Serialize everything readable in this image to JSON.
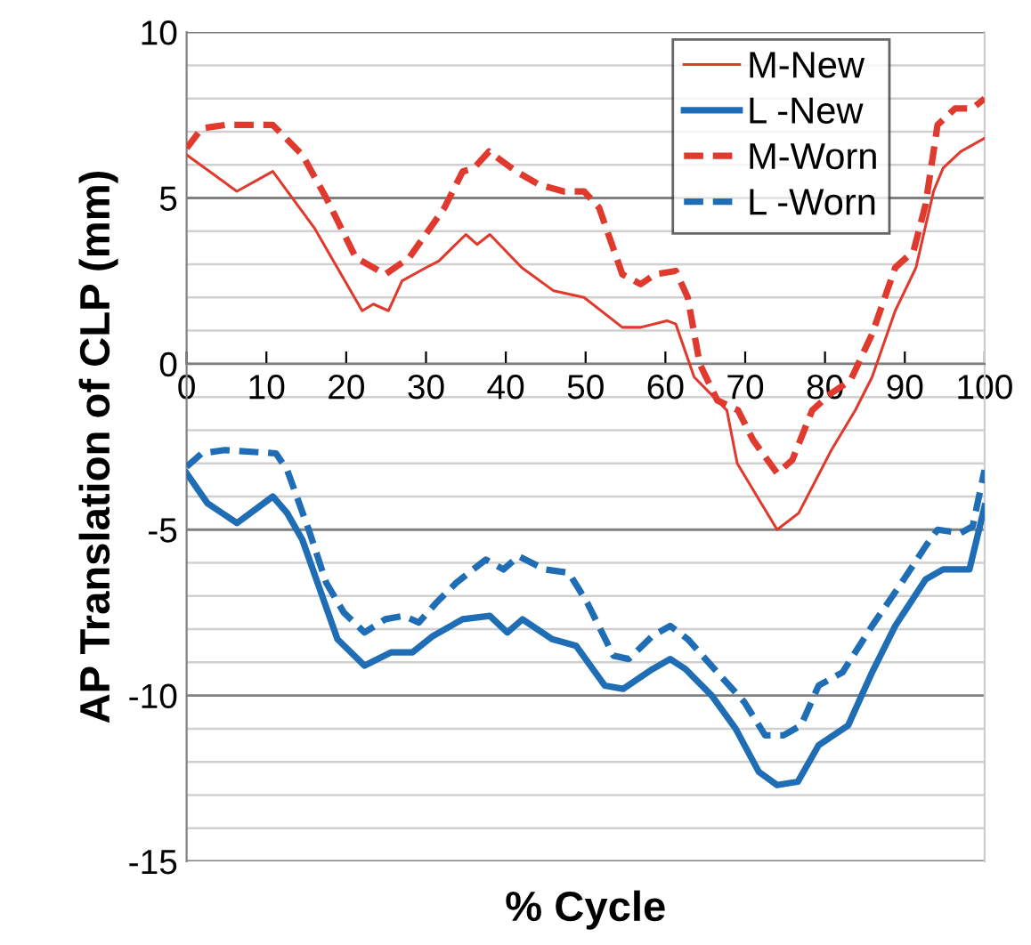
{
  "chart_data": {
    "type": "line",
    "xlabel": "% Cycle",
    "ylabel": "AP Translation of CLP (mm)",
    "xlim": [
      0,
      100
    ],
    "xticks": [
      0,
      10,
      20,
      30,
      40,
      50,
      60,
      70,
      80,
      90,
      100
    ],
    "ylim": [
      -15,
      10
    ],
    "yticks": [
      -15,
      {
        "value": -14,
        "label": null
      },
      {
        "value": -13,
        "label": null
      },
      {
        "value": -12,
        "label": null
      },
      {
        "value": -11,
        "label": null
      },
      -10,
      {
        "value": -9,
        "label": null
      },
      {
        "value": -8,
        "label": null
      },
      {
        "value": -7,
        "label": null
      },
      {
        "value": -6,
        "label": null
      },
      -5,
      {
        "value": -4,
        "label": null
      },
      {
        "value": -3,
        "label": null
      },
      {
        "value": -2,
        "label": null
      },
      {
        "value": -1,
        "label": null
      },
      0,
      {
        "value": 1,
        "label": null
      },
      {
        "value": 2,
        "label": null
      },
      {
        "value": 3,
        "label": null
      },
      {
        "value": 4,
        "label": null
      },
      5,
      {
        "value": 6,
        "label": null
      },
      {
        "value": 7,
        "label": null
      },
      {
        "value": 8,
        "label": null
      },
      {
        "value": 9,
        "label": null
      },
      10
    ],
    "grid": "y",
    "legend": "top right",
    "marker": "none",
    "series": [
      {
        "name": "M-New",
        "color": "#e03a2f",
        "line_style": "solid",
        "x": [
          0,
          6.3,
          10.8,
          16,
          22,
          23.4,
          25.3,
          27,
          30,
          31.6,
          35,
          36.4,
          38,
          42,
          46,
          49.8,
          54.6,
          56.9,
          60.2,
          61.3,
          63.6,
          67.7,
          69,
          72,
          74,
          76.7,
          80.8,
          83.8,
          85.9,
          88.8,
          91.4,
          93.6,
          94.8,
          97,
          100
        ],
        "values": [
          6.3,
          5.2,
          5.8,
          4.1,
          1.6,
          1.8,
          1.6,
          2.5,
          2.9,
          3.1,
          3.9,
          3.6,
          3.9,
          2.9,
          2.2,
          2.0,
          1.1,
          1.1,
          1.3,
          1.2,
          -0.4,
          -1.4,
          -3.0,
          -4.2,
          -5.0,
          -4.5,
          -2.6,
          -1.4,
          -0.4,
          1.6,
          2.9,
          5.2,
          5.9,
          6.4,
          6.8
        ]
      },
      {
        "name": "L -New",
        "color": "#1f6db4",
        "line_style": "solid",
        "x": [
          0,
          2.6,
          6.3,
          10.8,
          12.6,
          14.5,
          16.7,
          18.9,
          22.3,
          25.6,
          28.3,
          30.9,
          34.6,
          38,
          40.2,
          42.1,
          45.8,
          48.8,
          52.4,
          54.7,
          58.4,
          60.6,
          62.5,
          65.8,
          68.8,
          71.7,
          74,
          76.6,
          79.2,
          82.9,
          85.9,
          88.8,
          92.6,
          94.8,
          98.1,
          100
        ],
        "values": [
          -3.3,
          -4.2,
          -4.8,
          -4.0,
          -4.5,
          -5.3,
          -6.8,
          -8.3,
          -9.1,
          -8.7,
          -8.7,
          -8.2,
          -7.7,
          -7.6,
          -8.1,
          -7.7,
          -8.3,
          -8.5,
          -9.7,
          -9.8,
          -9.2,
          -8.9,
          -9.2,
          -10.0,
          -11.0,
          -12.3,
          -12.7,
          -12.6,
          -11.5,
          -10.9,
          -9.3,
          -7.9,
          -6.5,
          -6.2,
          -6.2,
          -4.3
        ]
      },
      {
        "name": "M-Worn",
        "color": "#e03a2f",
        "line_style": "dashed",
        "x": [
          0,
          1.9,
          4.8,
          10.8,
          14.5,
          17.5,
          21.2,
          24.9,
          27.9,
          32.3,
          34.6,
          36,
          37.9,
          41.3,
          44.2,
          47.2,
          49.8,
          51.7,
          54.6,
          56.9,
          58.7,
          61.3,
          62.8,
          64.3,
          66.5,
          69.1,
          71,
          74,
          75.9,
          78.4,
          80.7,
          83.2,
          85.9,
          88.8,
          91.1,
          92.6,
          94.1,
          96.3,
          98.5,
          100
        ],
        "values": [
          6.5,
          7.1,
          7.2,
          7.2,
          6.3,
          5.0,
          3.2,
          2.7,
          3.2,
          4.7,
          5.8,
          5.9,
          6.4,
          5.8,
          5.4,
          5.2,
          5.2,
          4.7,
          2.7,
          2.4,
          2.7,
          2.8,
          2.0,
          0.0,
          -1.1,
          -1.4,
          -2.3,
          -3.3,
          -2.9,
          -1.4,
          -0.9,
          -0.5,
          0.9,
          2.9,
          3.4,
          4.8,
          7.2,
          7.7,
          7.7,
          8.0
        ]
      },
      {
        "name": "L -Worn",
        "color": "#1f6db4",
        "line_style": "dashed",
        "x": [
          0,
          1.9,
          4.8,
          11.2,
          12.6,
          15.3,
          17.5,
          19.7,
          22.3,
          24.9,
          27.2,
          29.1,
          31.3,
          33.8,
          37.5,
          39.7,
          41.6,
          44.9,
          47.9,
          50.2,
          53.5,
          55.4,
          58.4,
          60.6,
          62.8,
          66.5,
          69.9,
          72.5,
          74.8,
          77,
          79.2,
          82.2,
          85.9,
          89.6,
          92.6,
          94.1,
          97,
          98.5,
          100
        ],
        "values": [
          -3.1,
          -2.7,
          -2.6,
          -2.7,
          -3.2,
          -5.0,
          -6.6,
          -7.5,
          -8.1,
          -7.7,
          -7.6,
          -7.8,
          -7.2,
          -6.6,
          -5.9,
          -6.2,
          -5.8,
          -6.2,
          -6.3,
          -7.2,
          -8.8,
          -8.9,
          -8.2,
          -7.9,
          -8.3,
          -9.3,
          -10.2,
          -11.2,
          -11.2,
          -10.9,
          -9.7,
          -9.3,
          -7.9,
          -6.6,
          -5.5,
          -5.0,
          -5.1,
          -4.9,
          -3.2
        ]
      }
    ]
  }
}
